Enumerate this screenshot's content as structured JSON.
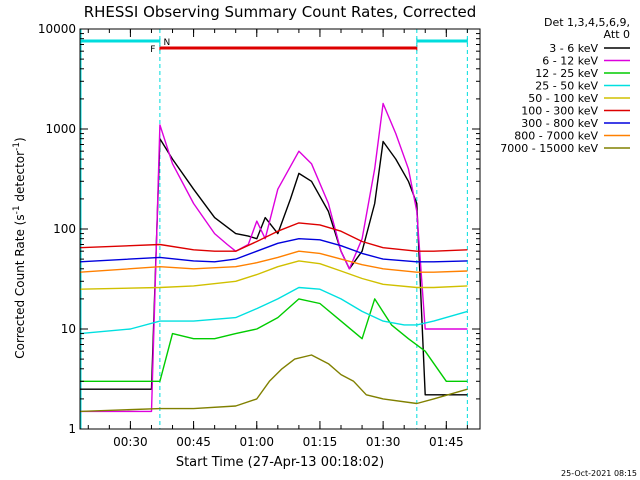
{
  "chart_data": {
    "type": "line",
    "title": "RHESSI Observing Summary Count Rates, Corrected",
    "ylabel_prefix": "Corrected Count Rate (s",
    "ylabel_mid": " detector",
    "ylabel_suffix": ")",
    "ylabel_exp": "-1",
    "xlabel": "Start Time (27-Apr-13 00:18:02)",
    "footer": "25-Oct-2021 08:15",
    "y_scale": "log",
    "ylim": [
      1,
      10000
    ],
    "xlim": [
      "00:18:02",
      "01:53:00"
    ],
    "y_ticks": [
      "1",
      "10",
      "100",
      "1000",
      "10000"
    ],
    "x_ticks": [
      "00:30",
      "00:45",
      "01:00",
      "01:15",
      "01:30",
      "01:45"
    ],
    "legend_header": [
      "Det 1,3,4,5,6,9,",
      "Att 0"
    ],
    "legend_position": "right",
    "flags": {
      "N": {
        "label": "N",
        "color": "#00dddd",
        "intervals": [
          [
            "00:18:02",
            "00:37:00"
          ],
          [
            "01:38:00",
            "01:50:00"
          ]
        ]
      },
      "F": {
        "label": "F",
        "color": "#dd0000",
        "intervals": [
          [
            "00:37:00",
            "01:38:00"
          ]
        ]
      }
    },
    "dashed_markers": [
      "00:37:00",
      "01:38:00",
      "01:50:00"
    ],
    "series": [
      {
        "name": "3 - 6 keV",
        "color": "#000000",
        "x": [
          "00:18",
          "00:35",
          "00:37",
          "00:40",
          "00:45",
          "00:50",
          "00:55",
          "00:58",
          "01:00",
          "01:02",
          "01:05",
          "01:08",
          "01:10",
          "01:13",
          "01:17",
          "01:20",
          "01:22",
          "01:25",
          "01:28",
          "01:30",
          "01:33",
          "01:36",
          "01:38",
          "01:40",
          "01:45",
          "01:50"
        ],
        "values": [
          2.5,
          2.5,
          800,
          500,
          250,
          130,
          90,
          85,
          80,
          130,
          90,
          200,
          360,
          300,
          150,
          60,
          40,
          60,
          180,
          750,
          500,
          300,
          180,
          2.2,
          2.2,
          2.2
        ]
      },
      {
        "name": "6 - 12 keV",
        "color": "#dd00dd",
        "x": [
          "00:18",
          "00:35",
          "00:37",
          "00:40",
          "00:45",
          "00:50",
          "00:53",
          "00:55",
          "00:58",
          "01:00",
          "01:02",
          "01:05",
          "01:10",
          "01:13",
          "01:17",
          "01:20",
          "01:22",
          "01:25",
          "01:28",
          "01:30",
          "01:33",
          "01:36",
          "01:38",
          "01:40",
          "01:42",
          "01:50"
        ],
        "values": [
          1.5,
          1.5,
          1100,
          450,
          180,
          90,
          70,
          60,
          70,
          120,
          80,
          250,
          600,
          450,
          180,
          60,
          40,
          80,
          400,
          1800,
          900,
          400,
          150,
          10,
          10,
          10
        ]
      },
      {
        "name": "12 - 25 keV",
        "color": "#00cc00",
        "x": [
          "00:18",
          "00:37",
          "00:40",
          "00:45",
          "00:50",
          "00:55",
          "01:00",
          "01:05",
          "01:10",
          "01:15",
          "01:20",
          "01:25",
          "01:28",
          "01:32",
          "01:36",
          "01:40",
          "01:45",
          "01:50"
        ],
        "values": [
          3,
          3,
          9,
          8,
          8,
          9,
          10,
          13,
          20,
          18,
          12,
          8,
          20,
          11,
          8,
          6,
          3,
          3
        ]
      },
      {
        "name": "25 - 50 keV",
        "color": "#00e0e0",
        "x": [
          "00:18",
          "00:30",
          "00:37",
          "00:45",
          "00:55",
          "01:00",
          "01:05",
          "01:10",
          "01:15",
          "01:20",
          "01:25",
          "01:30",
          "01:35",
          "01:38",
          "01:42",
          "01:50"
        ],
        "values": [
          9,
          10,
          12,
          12,
          13,
          16,
          20,
          26,
          25,
          20,
          15,
          12,
          11,
          11,
          12,
          15
        ]
      },
      {
        "name": "50 - 100 keV",
        "color": "#d0c000",
        "x": [
          "00:18",
          "00:37",
          "00:45",
          "00:55",
          "01:00",
          "01:05",
          "01:10",
          "01:15",
          "01:20",
          "01:25",
          "01:30",
          "01:38",
          "01:42",
          "01:50"
        ],
        "values": [
          25,
          26,
          27,
          30,
          35,
          42,
          48,
          45,
          38,
          32,
          28,
          26,
          26,
          27
        ]
      },
      {
        "name": "100 - 300 keV",
        "color": "#dd0000",
        "x": [
          "00:18",
          "00:37",
          "00:45",
          "00:50",
          "00:55",
          "01:00",
          "01:05",
          "01:10",
          "01:15",
          "01:20",
          "01:25",
          "01:30",
          "01:38",
          "01:42",
          "01:50"
        ],
        "values": [
          65,
          70,
          62,
          60,
          60,
          75,
          95,
          115,
          110,
          95,
          75,
          65,
          60,
          60,
          62
        ]
      },
      {
        "name": "300 - 800 keV",
        "color": "#0000dd",
        "x": [
          "00:18",
          "00:37",
          "00:45",
          "00:50",
          "00:55",
          "01:00",
          "01:05",
          "01:10",
          "01:15",
          "01:20",
          "01:25",
          "01:30",
          "01:38",
          "01:42",
          "01:50"
        ],
        "values": [
          47,
          52,
          48,
          47,
          50,
          60,
          72,
          80,
          78,
          68,
          57,
          50,
          47,
          47,
          48
        ]
      },
      {
        "name": "800 - 7000 keV",
        "color": "#ff8000",
        "x": [
          "00:18",
          "00:37",
          "00:45",
          "00:55",
          "01:00",
          "01:05",
          "01:10",
          "01:15",
          "01:20",
          "01:25",
          "01:30",
          "01:38",
          "01:42",
          "01:50"
        ],
        "values": [
          37,
          42,
          40,
          42,
          46,
          52,
          60,
          57,
          50,
          44,
          40,
          37,
          37,
          38
        ]
      },
      {
        "name": "7000 - 15000 keV",
        "color": "#808000",
        "x": [
          "00:18",
          "00:37",
          "00:45",
          "00:55",
          "01:00",
          "01:03",
          "01:06",
          "01:09",
          "01:13",
          "01:17",
          "01:20",
          "01:23",
          "01:26",
          "01:30",
          "01:38",
          "01:42",
          "01:50"
        ],
        "values": [
          1.5,
          1.6,
          1.6,
          1.7,
          2,
          3,
          4,
          5,
          5.5,
          4.5,
          3.5,
          3,
          2.2,
          2,
          1.8,
          2,
          2.5
        ]
      }
    ]
  }
}
